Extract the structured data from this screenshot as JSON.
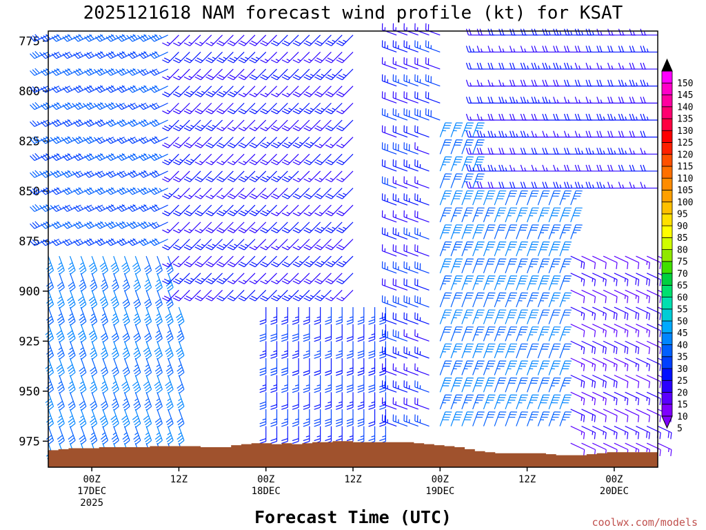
{
  "colors": {
    "terrain": "#a0522d",
    "credit": "#c0504d"
  },
  "chart_data": {
    "type": "wind_barb_time_height",
    "title": "2025121618 NAM forecast wind profile (kt) for KSAT",
    "xlabel": "Forecast Time (UTC)",
    "credit": "coolwx.com/models",
    "y_axis": {
      "unit": "hPa",
      "range": [
        988,
        770
      ],
      "ticks": [
        "775",
        "800",
        "825",
        "850",
        "875",
        "900",
        "925",
        "950",
        "975"
      ]
    },
    "x_axis": {
      "range_hours_from_start": [
        -6,
        78
      ],
      "tick_labels": [
        {
          "hour": 0,
          "lines": [
            "00Z",
            "17DEC",
            "2025"
          ]
        },
        {
          "hour": 12,
          "lines": [
            "12Z"
          ]
        },
        {
          "hour": 24,
          "lines": [
            "00Z",
            "18DEC"
          ]
        },
        {
          "hour": 36,
          "lines": [
            "12Z"
          ]
        },
        {
          "hour": 48,
          "lines": [
            "00Z",
            "19DEC"
          ]
        },
        {
          "hour": 60,
          "lines": [
            "12Z"
          ]
        },
        {
          "hour": 72,
          "lines": [
            "00Z",
            "20DEC"
          ]
        }
      ]
    },
    "colorbar": {
      "unit": "kt",
      "levels": [
        "5",
        "10",
        "15",
        "20",
        "25",
        "30",
        "35",
        "40",
        "45",
        "50",
        "55",
        "60",
        "65",
        "70",
        "75",
        "80",
        "85",
        "90",
        "95",
        "100",
        "105",
        "110",
        "115",
        "120",
        "125",
        "130",
        "135",
        "140",
        "145",
        "150"
      ],
      "colors": [
        "#7f00ff",
        "#5a00ff",
        "#2a00ff",
        "#0010ff",
        "#0040ff",
        "#0060ff",
        "#0085ff",
        "#00aaff",
        "#00ccd6",
        "#00e0b0",
        "#00e070",
        "#00d040",
        "#40e000",
        "#90e800",
        "#d0ff00",
        "#ffff00",
        "#ffe000",
        "#ffc000",
        "#ffa000",
        "#ff8c00",
        "#ff7000",
        "#ff5000",
        "#ff2000",
        "#ff0000",
        "#ff0040",
        "#ff0070",
        "#ff00a0",
        "#ff00c8",
        "#ff00ff"
      ]
    },
    "surface_pressure_hpa": [
      979.5,
      979,
      978.5,
      978.5,
      978.5,
      978,
      978,
      978,
      978,
      978,
      977.5,
      977.5,
      977.5,
      977.5,
      977.5,
      978,
      978,
      978,
      977,
      976.5,
      976,
      976,
      976.5,
      976,
      976.5,
      976,
      975.5,
      975.5,
      975,
      975,
      975.5,
      975.5,
      975.5,
      975.5,
      975.5,
      975.5,
      976,
      976.5,
      977,
      977.5,
      978,
      979,
      980,
      980.5,
      981,
      981,
      981,
      981,
      981,
      981.5,
      982,
      982,
      982,
      981.5,
      981,
      980.5,
      980.5,
      980.5,
      980.5,
      980.5
    ],
    "wind_regimes": [
      {
        "time_range": [
          -6,
          12
        ],
        "level_range": [
          770,
          880
        ],
        "speed_kt": "25-35",
        "direction": "W/SW"
      },
      {
        "time_range": [
          -6,
          12
        ],
        "level_range": [
          880,
          980
        ],
        "speed_kt": "30-40",
        "direction": "S/SE"
      },
      {
        "time_range": [
          12,
          36
        ],
        "level_range": [
          770,
          900
        ],
        "speed_kt": "15-25",
        "direction": "SW"
      },
      {
        "time_range": [
          24,
          42
        ],
        "level_range": [
          900,
          975
        ],
        "speed_kt": "20-30",
        "direction": "S"
      },
      {
        "time_range": [
          42,
          48
        ],
        "level_range": [
          770,
          975
        ],
        "speed_kt": "15-30",
        "direction": "W/NW"
      },
      {
        "time_range": [
          48,
          66
        ],
        "level_range": [
          820,
          975
        ],
        "speed_kt": "30-40",
        "direction": "N/NE"
      },
      {
        "time_range": [
          54,
          78
        ],
        "level_range": [
          770,
          850
        ],
        "speed_kt": "15-25",
        "direction": "W"
      },
      {
        "time_range": [
          66,
          78
        ],
        "level_range": [
          880,
          980
        ],
        "speed_kt": "10-20",
        "direction": "E/SE"
      }
    ]
  }
}
